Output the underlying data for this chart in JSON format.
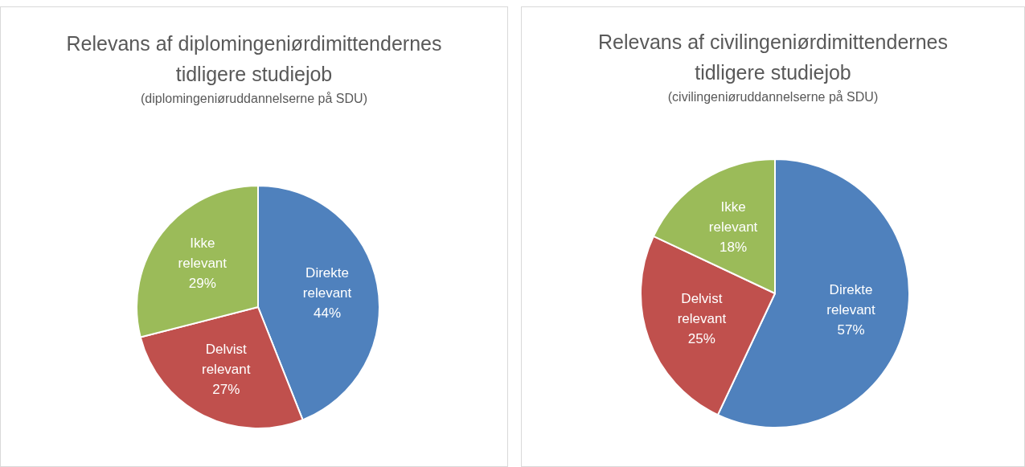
{
  "chart_data": [
    {
      "type": "pie",
      "title": "Relevans af diplomingeniørdimittendernes tidligere studiejob",
      "subtitle": "(diplomingeniøruddannelserne på SDU)",
      "categories": [
        "Direkte relevant",
        "Delvist relevant",
        "Ikke relevant"
      ],
      "values": [
        44,
        27,
        29
      ],
      "value_labels": [
        "44%",
        "27%",
        "29%"
      ],
      "colors": [
        "#4f81bd",
        "#c0504d",
        "#9bbb59"
      ],
      "legend": false
    },
    {
      "type": "pie",
      "title": "Relevans af civilingeniørdimittendernes tidligere studiejob",
      "subtitle": "(civilingeniøruddannelserne på SDU)",
      "categories": [
        "Direkte relevant",
        "Delvist relevant",
        "Ikke relevant"
      ],
      "values": [
        57,
        25,
        18
      ],
      "value_labels": [
        "57%",
        "25%",
        "18%"
      ],
      "colors": [
        "#4f81bd",
        "#c0504d",
        "#9bbb59"
      ],
      "legend": false
    }
  ]
}
